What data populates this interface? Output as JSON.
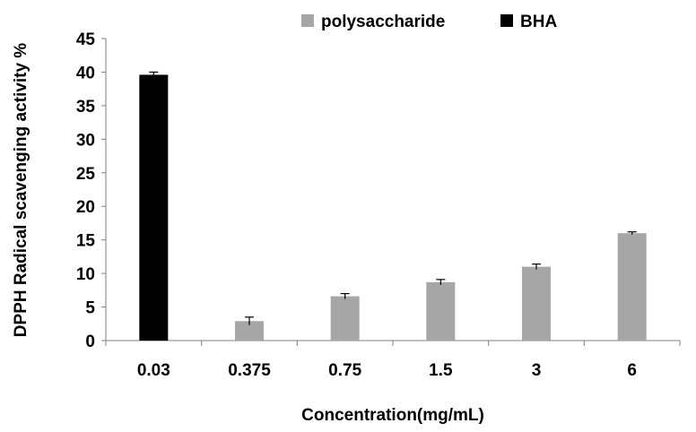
{
  "chart_data": {
    "type": "bar",
    "title": "",
    "xlabel": "Concentration(mg/mL)",
    "ylabel": "DPPH Radical scavenging activity %",
    "categories": [
      "0.03",
      "0.375",
      "0.75",
      "1.5",
      "3",
      "6"
    ],
    "ylim": [
      0,
      45
    ],
    "yticks": [
      "0",
      "5",
      "10",
      "15",
      "20",
      "25",
      "30",
      "35",
      "40",
      "45"
    ],
    "grid": false,
    "legend_position": "top-right",
    "series": [
      {
        "name": "polysaccharide",
        "color": "#a6a6a6",
        "values": [
          null,
          2.9,
          6.6,
          8.7,
          11.0,
          16.0
        ],
        "errors": [
          null,
          0.6,
          0.4,
          0.4,
          0.4,
          0.2
        ]
      },
      {
        "name": "BHA",
        "color": "#000000",
        "values": [
          39.6,
          null,
          null,
          null,
          null,
          null
        ],
        "errors": [
          0.4,
          null,
          null,
          null,
          null,
          null
        ]
      }
    ]
  }
}
